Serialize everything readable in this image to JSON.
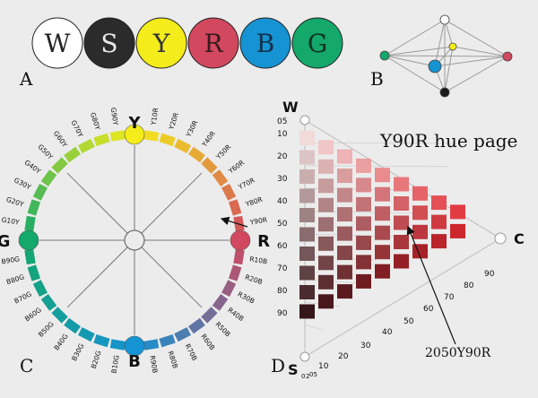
{
  "panel_a": {
    "label": "A",
    "colors": [
      {
        "letter": "W",
        "fill": "#ffffff",
        "text": "#222222"
      },
      {
        "letter": "S",
        "fill": "#2b2b2b",
        "text": "#e8e8e8"
      },
      {
        "letter": "Y",
        "fill": "#f4ec1b",
        "text": "#333333"
      },
      {
        "letter": "R",
        "fill": "#d2485f",
        "text": "#3a1a20"
      },
      {
        "letter": "B",
        "fill": "#1593d2",
        "text": "#13304a"
      },
      {
        "letter": "G",
        "fill": "#14a86a",
        "text": "#0e3323"
      }
    ]
  },
  "panel_b": {
    "label": "B",
    "node_colors": {
      "top": "#ffffff",
      "bottom": "#1a1a1a",
      "left": "#14a86a",
      "right": "#d2485f",
      "front": "#1593d2",
      "back": "#f4ec1b"
    }
  },
  "panel_c": {
    "label": "C",
    "poles": {
      "top": "Y",
      "right": "R",
      "bottom": "B",
      "left": "G"
    },
    "pole_colors": {
      "Y": "#f4ec1b",
      "R": "#d2485f",
      "B": "#1593d2",
      "G": "#14a86a"
    },
    "hues_top_right": [
      "Y10R",
      "Y20R",
      "Y30R",
      "Y40R",
      "Y50R",
      "Y60R",
      "Y70R",
      "Y80R",
      "Y90R"
    ],
    "hues_bottom_right": [
      "R10B",
      "R20B",
      "R30B",
      "R40B",
      "R50B",
      "R60B",
      "R70B",
      "R80B",
      "R90B"
    ],
    "hues_bottom_left": [
      "B10G",
      "B20G",
      "B30G",
      "B40G",
      "B50G",
      "B60G",
      "B70G",
      "B80G",
      "B90G"
    ],
    "hues_top_left": [
      "G10Y",
      "G20Y",
      "G30Y",
      "G40Y",
      "G50Y",
      "G60Y",
      "G70Y",
      "G80Y",
      "G90Y"
    ]
  },
  "panel_d": {
    "label": "D",
    "title": "Y90R hue page",
    "axis_w": "W",
    "axis_s": "S",
    "axis_c": "C",
    "blackness_ticks": [
      "05",
      "10",
      "20",
      "30",
      "40",
      "50",
      "60",
      "70",
      "80",
      "90"
    ],
    "chroma_ticks": [
      "10",
      "20",
      "30",
      "40",
      "50",
      "60",
      "70",
      "80",
      "90"
    ],
    "base_ticks": [
      "0",
      "2",
      "05",
      "10",
      "20",
      "30",
      "40",
      "50",
      "60",
      "70",
      "80",
      "90"
    ],
    "annotation": "2050Y90R",
    "hue_color": "#e02830"
  }
}
